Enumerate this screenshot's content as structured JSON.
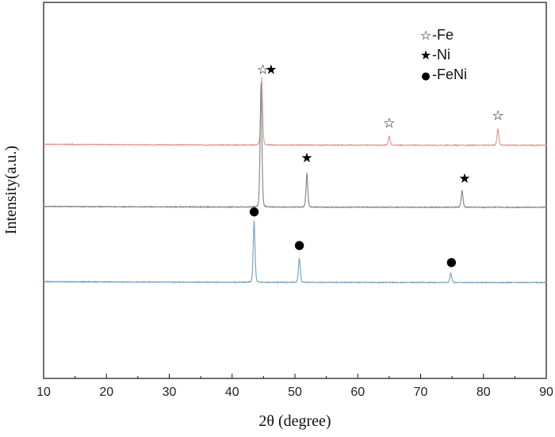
{
  "chart_data": {
    "type": "line",
    "title": "",
    "xlabel": "2θ (degree)",
    "ylabel": "Intensity(a.u.)",
    "xlim": [
      10,
      90
    ],
    "ticks": [
      "10",
      "20",
      "30",
      "40",
      "50",
      "60",
      "70",
      "80",
      "90"
    ],
    "yaxis_ticks": false,
    "grid": false,
    "legend_position": "top-right",
    "legend": [
      {
        "symbol": "☆",
        "label": "-Fe",
        "marker": "open-star"
      },
      {
        "symbol": "★",
        "label": "-Ni",
        "marker": "filled-star"
      },
      {
        "symbol": "●",
        "label": "-FeNi",
        "marker": "filled-circle"
      }
    ],
    "series": [
      {
        "color": "#e29a9a",
        "baseline": 0.62,
        "peaks": [
          {
            "x": 44.7,
            "height": 0.18
          },
          {
            "x": 65.0,
            "height": 0.025
          },
          {
            "x": 82.3,
            "height": 0.045
          }
        ],
        "markers": [
          {
            "x": 44.9,
            "height": 0.19,
            "symbol": "☆"
          },
          {
            "x": 46.2,
            "height": 0.19,
            "symbol": "★"
          },
          {
            "x": 65.0,
            "height": 0.047,
            "symbol": "☆"
          },
          {
            "x": 82.3,
            "height": 0.067,
            "symbol": "☆"
          }
        ]
      },
      {
        "color": "#8a8a8a",
        "baseline": 0.455,
        "peaks": [
          {
            "x": 44.6,
            "height": 0.33
          },
          {
            "x": 51.9,
            "height": 0.09
          },
          {
            "x": 76.6,
            "height": 0.045
          }
        ],
        "markers": [
          {
            "x": 51.9,
            "height": 0.12,
            "symbol": "★"
          },
          {
            "x": 77.0,
            "height": 0.065,
            "symbol": "★"
          }
        ]
      },
      {
        "color": "#7aa7c8",
        "baseline": 0.255,
        "peaks": [
          {
            "x": 43.5,
            "height": 0.165
          },
          {
            "x": 50.7,
            "height": 0.065
          },
          {
            "x": 74.8,
            "height": 0.025
          }
        ],
        "markers": [
          {
            "x": 43.5,
            "height": 0.18,
            "symbol": "●"
          },
          {
            "x": 50.7,
            "height": 0.09,
            "symbol": "●"
          },
          {
            "x": 74.9,
            "height": 0.045,
            "symbol": "●"
          }
        ]
      }
    ]
  }
}
